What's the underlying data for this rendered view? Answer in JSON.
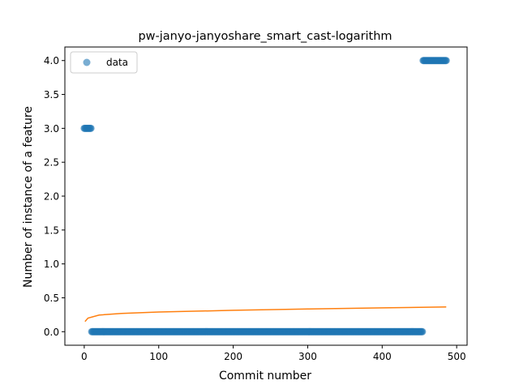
{
  "chart_data": {
    "type": "scatter",
    "title": "pw-janyo-janyoshare_smart_cast-logarithm",
    "xlabel": "Commit number",
    "ylabel": "Number of instance of a feature",
    "xlim": [
      -26,
      514
    ],
    "ylim": [
      -0.2,
      4.2
    ],
    "xticks": [
      0,
      100,
      200,
      300,
      400,
      500
    ],
    "yticks": [
      0.0,
      0.5,
      1.0,
      1.5,
      2.0,
      2.5,
      3.0,
      3.5,
      4.0
    ],
    "xtick_labels": [
      "0",
      "100",
      "200",
      "300",
      "400",
      "500"
    ],
    "ytick_labels": [
      "0.0",
      "0.5",
      "1.0",
      "1.5",
      "2.0",
      "2.5",
      "3.0",
      "3.5",
      "4.0"
    ],
    "legend": {
      "position": "upper-left",
      "entries": [
        "data"
      ]
    },
    "grid": false,
    "series": [
      {
        "name": "data",
        "kind": "points",
        "color": "#1f77b4",
        "segments": [
          {
            "x_start": 0,
            "x_end": 9,
            "y": 3
          },
          {
            "x_start": 10,
            "x_end": 454,
            "y": 0
          },
          {
            "x_start": 455,
            "x_end": 486,
            "y": 4
          }
        ]
      },
      {
        "kind": "line",
        "color": "#ff7f0e",
        "fit": "logarithmic",
        "x_range": [
          1,
          486
        ],
        "points": [
          [
            1,
            0.15
          ],
          [
            5,
            0.2
          ],
          [
            20,
            0.245
          ],
          [
            50,
            0.27
          ],
          [
            100,
            0.29
          ],
          [
            200,
            0.315
          ],
          [
            300,
            0.335
          ],
          [
            400,
            0.352
          ],
          [
            486,
            0.365
          ]
        ]
      }
    ]
  }
}
